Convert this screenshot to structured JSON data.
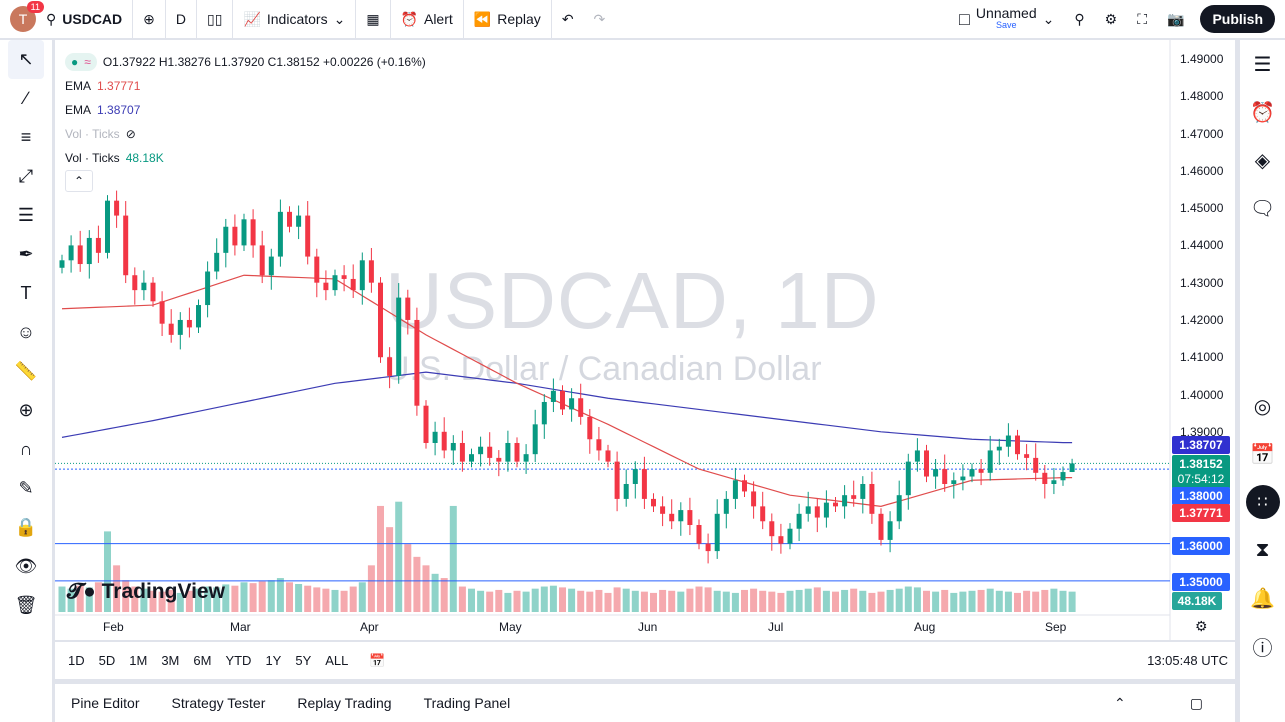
{
  "topbar": {
    "notifications": "11",
    "avatar_letter": "T",
    "symbol": "USDCAD",
    "interval": "D",
    "indicators": "Indicators",
    "alert": "Alert",
    "replay": "Replay",
    "layout_name": "Unnamed",
    "layout_sub": "Save",
    "publish": "Publish"
  },
  "legend": {
    "ohlc": "O1.37922 H1.38276 L1.37920 C1.38152 +0.00226 (+0.16%)",
    "ema1_label": "EMA",
    "ema1_value": "1.37771",
    "ema2_label": "EMA",
    "ema2_value": "1.38707",
    "vol_hidden": "Vol · Ticks",
    "vol_label": "Vol · Ticks",
    "vol_value": "48.18K"
  },
  "watermark": {
    "title": "USDCAD, 1D",
    "subtitle": "U.S. Dollar / Canadian Dollar"
  },
  "branding": "TradingView",
  "price_axis": {
    "ticks": [
      "1.49000",
      "1.48000",
      "1.47000",
      "1.46000",
      "1.45000",
      "1.44000",
      "1.43000",
      "1.42000",
      "1.41000",
      "1.40000",
      "1.39000"
    ],
    "badges": {
      "ema200": "1.38707",
      "last": "1.38152",
      "countdown": "07:54:12",
      "line138": "1.38000",
      "ema50": "1.37771",
      "line136": "1.36000",
      "line135": "1.35000",
      "volume": "48.18K"
    }
  },
  "time_axis": [
    "Feb",
    "Mar",
    "Apr",
    "May",
    "Jun",
    "Jul",
    "Aug",
    "Sep"
  ],
  "range_buttons": [
    "1D",
    "5D",
    "1M",
    "3M",
    "6M",
    "YTD",
    "1Y",
    "5Y",
    "ALL"
  ],
  "clock": "13:05:48 UTC",
  "bottom_tabs": [
    "Pine Editor",
    "Strategy Tester",
    "Replay Trading",
    "Trading Panel"
  ],
  "colors": {
    "up": "#089981",
    "down": "#f23645",
    "ema50": "#e04c4c",
    "ema200": "#3c3cb4",
    "hline": "#2962ff"
  },
  "chart_data": {
    "type": "candlestick",
    "ylim": [
      1.35,
      1.49
    ],
    "last": {
      "open": 1.37922,
      "high": 1.38276,
      "low": 1.3792,
      "close": 1.38152
    },
    "closes": [
      1.436,
      1.44,
      1.435,
      1.442,
      1.438,
      1.452,
      1.448,
      1.432,
      1.428,
      1.43,
      1.425,
      1.419,
      1.416,
      1.42,
      1.418,
      1.424,
      1.433,
      1.438,
      1.445,
      1.44,
      1.447,
      1.44,
      1.432,
      1.437,
      1.449,
      1.445,
      1.448,
      1.437,
      1.43,
      1.428,
      1.432,
      1.431,
      1.428,
      1.436,
      1.43,
      1.41,
      1.405,
      1.426,
      1.42,
      1.397,
      1.387,
      1.39,
      1.385,
      1.387,
      1.382,
      1.384,
      1.386,
      1.383,
      1.382,
      1.387,
      1.382,
      1.384,
      1.392,
      1.398,
      1.401,
      1.396,
      1.399,
      1.394,
      1.388,
      1.385,
      1.382,
      1.372,
      1.376,
      1.38,
      1.372,
      1.37,
      1.368,
      1.366,
      1.369,
      1.365,
      1.36,
      1.358,
      1.368,
      1.372,
      1.377,
      1.374,
      1.37,
      1.366,
      1.362,
      1.36,
      1.364,
      1.368,
      1.37,
      1.367,
      1.371,
      1.37,
      1.373,
      1.372,
      1.376,
      1.368,
      1.361,
      1.366,
      1.373,
      1.382,
      1.385,
      1.378,
      1.38,
      1.376,
      1.377,
      1.378,
      1.38,
      1.379,
      1.385,
      1.386,
      1.389,
      1.384,
      1.383,
      1.379,
      1.376,
      1.377,
      1.3792,
      1.38152
    ],
    "volume_k": [
      60,
      55,
      62,
      58,
      70,
      190,
      110,
      75,
      60,
      55,
      50,
      48,
      52,
      45,
      50,
      55,
      60,
      58,
      65,
      62,
      70,
      68,
      72,
      75,
      80,
      70,
      66,
      62,
      58,
      55,
      52,
      50,
      60,
      70,
      110,
      250,
      200,
      260,
      160,
      130,
      110,
      90,
      80,
      250,
      60,
      55,
      50,
      48,
      52,
      45,
      50,
      48,
      55,
      60,
      62,
      58,
      55,
      50,
      48,
      52,
      45,
      58,
      55,
      50,
      48,
      45,
      52,
      50,
      48,
      55,
      60,
      58,
      50,
      48,
      45,
      52,
      55,
      50,
      48,
      45,
      50,
      52,
      55,
      58,
      50,
      48,
      52,
      55,
      50,
      45,
      48,
      52,
      55,
      60,
      58,
      50,
      48,
      52,
      45,
      48,
      50,
      52,
      55,
      50,
      48,
      45,
      50,
      48,
      52,
      55,
      50,
      48
    ],
    "ema_red_sampled_every_10": [
      1.423,
      1.424,
      1.432,
      1.431,
      1.416,
      1.403,
      1.392,
      1.38,
      1.373,
      1.37,
      1.377,
      1.3777
    ],
    "ema_blue_sampled_every_10": [
      1.3885,
      1.393,
      1.398,
      1.403,
      1.406,
      1.403,
      1.399,
      1.396,
      1.393,
      1.39,
      1.388,
      1.3871
    ],
    "horizontal_lines": [
      1.38,
      1.36,
      1.35
    ]
  }
}
